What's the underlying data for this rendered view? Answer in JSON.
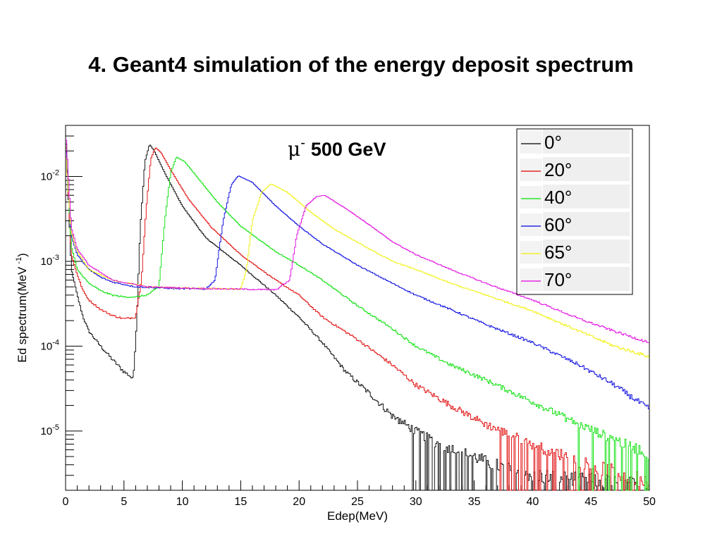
{
  "slide": {
    "title": "4. Geant4 simulation of the energy deposit spectrum"
  },
  "chart_data": {
    "type": "line",
    "title_particle": "μ",
    "title_charge": "-",
    "title_energy": "500 GeV",
    "xlabel": "Edep(MeV)",
    "ylabel_main": "Ed spectrum(MeV",
    "ylabel_exp": "-1",
    "ylabel_close": ")",
    "xlim": [
      0,
      50
    ],
    "ylim": [
      2e-06,
      0.04
    ],
    "yscale": "log",
    "x_ticks": [
      0,
      5,
      10,
      15,
      20,
      25,
      30,
      35,
      40,
      45,
      50
    ],
    "y_ticks": [
      {
        "value": 1e-05,
        "base": "10",
        "exp": "-5"
      },
      {
        "value": 0.0001,
        "base": "10",
        "exp": "-4"
      },
      {
        "value": 0.001,
        "base": "10",
        "exp": "-3"
      },
      {
        "value": 0.01,
        "base": "10",
        "exp": "-2"
      }
    ],
    "legend_position": "top-right",
    "grid": false,
    "series": [
      {
        "name": "0°",
        "color": "#000000",
        "points": [
          [
            0,
            0.035
          ],
          [
            0.5,
            0.0008
          ],
          [
            1,
            0.0004
          ],
          [
            1.5,
            0.00022
          ],
          [
            2,
            0.00015
          ],
          [
            3,
            0.0001
          ],
          [
            4,
            7e-05
          ],
          [
            5,
            5e-05
          ],
          [
            5.5,
            4.5e-05
          ],
          [
            5.8,
            4e-05
          ],
          [
            6.1,
            0.0002
          ],
          [
            6.4,
            0.0025
          ],
          [
            6.8,
            0.015
          ],
          [
            7.2,
            0.024
          ],
          [
            7.6,
            0.02
          ],
          [
            8.5,
            0.011
          ],
          [
            10,
            0.0045
          ],
          [
            12,
            0.0019
          ],
          [
            15,
            0.0009
          ],
          [
            18,
            0.0004
          ],
          [
            20,
            0.00022
          ],
          [
            22,
            0.00011
          ],
          [
            24,
            5e-05
          ],
          [
            26,
            2.8e-05
          ],
          [
            28,
            1.5e-05
          ],
          [
            30,
            1e-05
          ],
          [
            32,
            7e-06
          ],
          [
            35,
            5e-06
          ],
          [
            38,
            3.5e-06
          ],
          [
            42,
            2.8e-06
          ],
          [
            46,
            2.5e-06
          ],
          [
            50,
            2.2e-06
          ]
        ]
      },
      {
        "name": "20°",
        "color": "#e00000",
        "points": [
          [
            0,
            0.03
          ],
          [
            0.5,
            0.0012
          ],
          [
            1,
            0.0007
          ],
          [
            1.5,
            0.00045
          ],
          [
            2,
            0.00035
          ],
          [
            3,
            0.00027
          ],
          [
            4,
            0.00023
          ],
          [
            5,
            0.00021
          ],
          [
            6,
            0.00022
          ],
          [
            6.5,
            0.0006
          ],
          [
            6.9,
            0.004
          ],
          [
            7.3,
            0.016
          ],
          [
            7.7,
            0.022
          ],
          [
            8.2,
            0.019
          ],
          [
            9,
            0.012
          ],
          [
            10.5,
            0.0055
          ],
          [
            12.5,
            0.0025
          ],
          [
            15,
            0.0012
          ],
          [
            18,
            0.0006
          ],
          [
            20,
            0.0004
          ],
          [
            22,
            0.00022
          ],
          [
            25,
            0.00012
          ],
          [
            28,
            6e-05
          ],
          [
            30,
            3.5e-05
          ],
          [
            33,
            2e-05
          ],
          [
            36,
            1.2e-05
          ],
          [
            40,
            7e-06
          ],
          [
            44,
            4.5e-06
          ],
          [
            48,
            3e-06
          ],
          [
            50,
            2.6e-06
          ]
        ]
      },
      {
        "name": "40°",
        "color": "#00e000",
        "points": [
          [
            0,
            0.03
          ],
          [
            0.5,
            0.0015
          ],
          [
            1,
            0.0008
          ],
          [
            2,
            0.00055
          ],
          [
            3,
            0.00045
          ],
          [
            4,
            0.0004
          ],
          [
            5,
            0.00038
          ],
          [
            6,
            0.00038
          ],
          [
            7,
            0.0004
          ],
          [
            8,
            0.0005
          ],
          [
            8.5,
            0.003
          ],
          [
            9,
            0.011
          ],
          [
            9.5,
            0.017
          ],
          [
            10.2,
            0.015
          ],
          [
            11.5,
            0.009
          ],
          [
            13,
            0.005
          ],
          [
            15,
            0.0026
          ],
          [
            18,
            0.0013
          ],
          [
            20,
            0.0009
          ],
          [
            22,
            0.0006
          ],
          [
            25,
            0.0003
          ],
          [
            28,
            0.00016
          ],
          [
            30,
            0.0001
          ],
          [
            33,
            6e-05
          ],
          [
            36,
            4e-05
          ],
          [
            40,
            2.2e-05
          ],
          [
            44,
            1.2e-05
          ],
          [
            48,
            7e-06
          ],
          [
            50,
            5.5e-06
          ]
        ]
      },
      {
        "name": "60°",
        "color": "#0000e0",
        "points": [
          [
            0,
            0.025
          ],
          [
            0.5,
            0.002
          ],
          [
            1,
            0.0012
          ],
          [
            2,
            0.0008
          ],
          [
            3,
            0.00065
          ],
          [
            4,
            0.00057
          ],
          [
            6,
            0.0005
          ],
          [
            9,
            0.00048
          ],
          [
            12,
            0.00047
          ],
          [
            12.8,
            0.0006
          ],
          [
            13.5,
            0.003
          ],
          [
            14.2,
            0.008
          ],
          [
            14.8,
            0.0102
          ],
          [
            16,
            0.0085
          ],
          [
            18,
            0.0045
          ],
          [
            20,
            0.0026
          ],
          [
            22,
            0.0016
          ],
          [
            25,
            0.0009
          ],
          [
            28,
            0.00055
          ],
          [
            30,
            0.0004
          ],
          [
            33,
            0.00027
          ],
          [
            36,
            0.00018
          ],
          [
            40,
            0.00011
          ],
          [
            44,
            6e-05
          ],
          [
            47,
            3.5e-05
          ],
          [
            50,
            1.8e-05
          ]
        ]
      },
      {
        "name": "65°",
        "color": "#f0f000",
        "points": [
          [
            0,
            0.02
          ],
          [
            0.5,
            0.0022
          ],
          [
            1,
            0.0013
          ],
          [
            2,
            0.0008
          ],
          [
            4,
            0.0006
          ],
          [
            7,
            0.0005
          ],
          [
            11,
            0.00048
          ],
          [
            15,
            0.00047
          ],
          [
            15.5,
            0.0008
          ],
          [
            16,
            0.003
          ],
          [
            16.8,
            0.0065
          ],
          [
            17.6,
            0.0082
          ],
          [
            19,
            0.0065
          ],
          [
            21,
            0.0038
          ],
          [
            23,
            0.0024
          ],
          [
            26,
            0.0014
          ],
          [
            28,
            0.001
          ],
          [
            30,
            0.0008
          ],
          [
            33,
            0.00055
          ],
          [
            36,
            0.0004
          ],
          [
            40,
            0.00026
          ],
          [
            44,
            0.00015
          ],
          [
            47,
            0.0001
          ],
          [
            50,
            7.5e-05
          ]
        ]
      },
      {
        "name": "70°",
        "color": "#e000e0",
        "points": [
          [
            0,
            0.035
          ],
          [
            0.5,
            0.0025
          ],
          [
            1,
            0.0014
          ],
          [
            2,
            0.0009
          ],
          [
            4,
            0.0006
          ],
          [
            7,
            0.0005
          ],
          [
            11,
            0.00048
          ],
          [
            15,
            0.00047
          ],
          [
            18,
            0.00046
          ],
          [
            19.2,
            0.0006
          ],
          [
            19.8,
            0.002
          ],
          [
            20.6,
            0.0045
          ],
          [
            21.5,
            0.0058
          ],
          [
            22.2,
            0.006
          ],
          [
            24,
            0.0042
          ],
          [
            26,
            0.0027
          ],
          [
            28,
            0.0017
          ],
          [
            30,
            0.0012
          ],
          [
            33,
            0.0008
          ],
          [
            36,
            0.00055
          ],
          [
            40,
            0.00035
          ],
          [
            44,
            0.00021
          ],
          [
            47,
            0.00015
          ],
          [
            50,
            0.00011
          ]
        ]
      }
    ]
  }
}
